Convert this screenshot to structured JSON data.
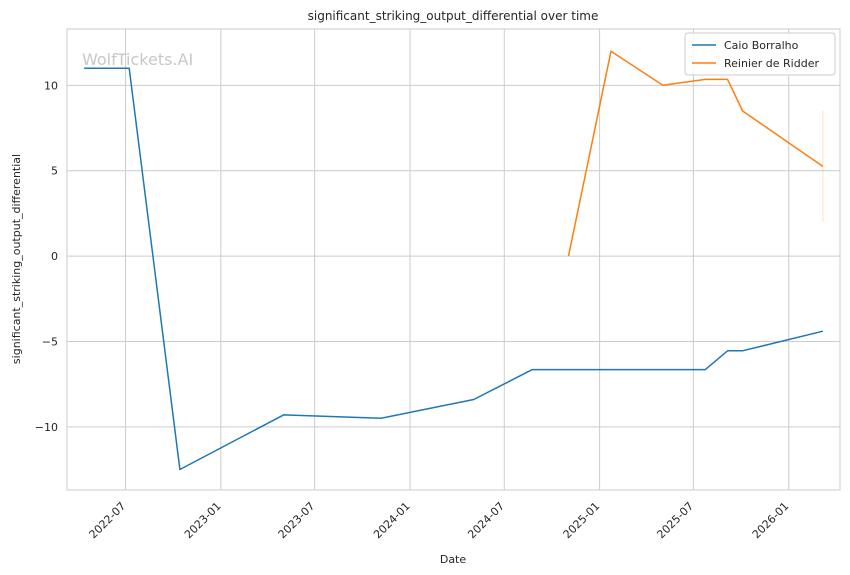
{
  "chart_data": {
    "type": "line",
    "title": "significant_striking_output_differential over time",
    "xlabel": "Date",
    "ylabel": "significant_striking_output_differential",
    "watermark": "WolfTickets.AI",
    "x_ticks": [
      "2022-07",
      "2023-01",
      "2023-07",
      "2024-01",
      "2024-07",
      "2025-01",
      "2025-07",
      "2026-01"
    ],
    "y_ticks": [
      10,
      5,
      0,
      -5,
      -10
    ],
    "xlim": [
      "2022-03-10",
      "2026-04-10"
    ],
    "ylim": [
      -13.7,
      13.3
    ],
    "grid": true,
    "legend_position": "top-right",
    "series": [
      {
        "name": "Caio Borralho",
        "color": "#1f77b4",
        "points": [
          {
            "x": "2022-04-12",
            "y": 11.0
          },
          {
            "x": "2022-07-08",
            "y": 11.0
          },
          {
            "x": "2022-10-14",
            "y": -12.5
          },
          {
            "x": "2023-05-02",
            "y": -9.3
          },
          {
            "x": "2023-11-06",
            "y": -9.5
          },
          {
            "x": "2024-05-03",
            "y": -8.4
          },
          {
            "x": "2024-08-24",
            "y": -6.65
          },
          {
            "x": "2025-07-24",
            "y": -6.65
          },
          {
            "x": "2025-09-05",
            "y": -5.55
          },
          {
            "x": "2025-10-04",
            "y": -5.55
          },
          {
            "x": "2026-03-08",
            "y": -4.4
          }
        ]
      },
      {
        "name": "Reinier de Ridder",
        "color": "#ff7f0e",
        "points": [
          {
            "x": "2024-11-02",
            "y": 0.0
          },
          {
            "x": "2025-01-23",
            "y": 12.0
          },
          {
            "x": "2025-05-03",
            "y": 10.0
          },
          {
            "x": "2025-07-24",
            "y": 10.35
          },
          {
            "x": "2025-09-05",
            "y": 10.35
          },
          {
            "x": "2025-10-04",
            "y": 8.5
          },
          {
            "x": "2026-03-08",
            "y": 5.25
          }
        ],
        "error_band": {
          "x": "2026-03-08",
          "low": 2.0,
          "high": 8.5
        }
      }
    ]
  }
}
